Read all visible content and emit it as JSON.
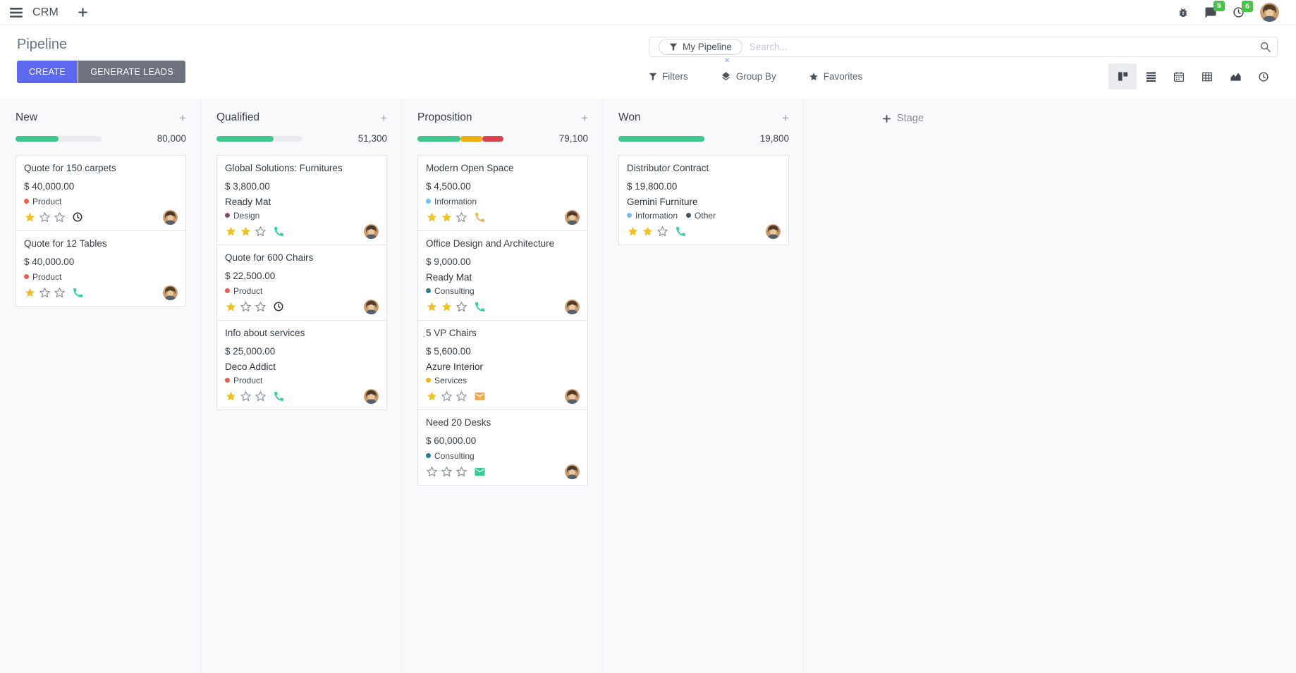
{
  "icons": {
    "plus": "+",
    "facet_remove": "×"
  },
  "navbar": {
    "app_name": "CRM",
    "messages_badge": "5",
    "activities_badge": "6"
  },
  "control_panel": {
    "title": "Pipeline",
    "create_label": "CREATE",
    "generate_leads_label": "GENERATE LEADS",
    "search": {
      "facet_label": "My Pipeline",
      "placeholder": "Search..."
    },
    "filters_label": "Filters",
    "group_by_label": "Group By",
    "favorites_label": "Favorites"
  },
  "board": {
    "add_stage_label": "Stage",
    "star_filled_color": "#f0c220",
    "star_empty_color": "#8b929b",
    "columns": [
      {
        "title": "New",
        "total": "80,000",
        "progress": [
          {
            "color": "#3fc78e",
            "pct": 50
          }
        ],
        "cards": [
          {
            "title": "Quote for 150 carpets",
            "amount": "$ 40,000.00",
            "partner": null,
            "tags": [
              {
                "label": "Product",
                "color": "#e8604e"
              }
            ],
            "stars": 1,
            "activity": {
              "icon": "clock",
              "color": "#2f353b"
            }
          },
          {
            "title": "Quote for 12 Tables",
            "amount": "$ 40,000.00",
            "partner": null,
            "tags": [
              {
                "label": "Product",
                "color": "#e8604e"
              }
            ],
            "stars": 1,
            "activity": {
              "icon": "phone",
              "color": "#2fd0a1"
            }
          }
        ]
      },
      {
        "title": "Qualified",
        "total": "51,300",
        "progress": [
          {
            "color": "#3fc78e",
            "pct": 66
          }
        ],
        "cards": [
          {
            "title": "Global Solutions: Furnitures",
            "amount": "$ 3,800.00",
            "partner": "Ready Mat",
            "tags": [
              {
                "label": "Design",
                "color": "#874a63"
              }
            ],
            "stars": 2,
            "activity": {
              "icon": "phone",
              "color": "#2fd0a1"
            }
          },
          {
            "title": "Quote for 600 Chairs",
            "amount": "$ 22,500.00",
            "partner": null,
            "tags": [
              {
                "label": "Product",
                "color": "#e8604e"
              }
            ],
            "stars": 1,
            "activity": {
              "icon": "clock",
              "color": "#2f353b"
            }
          },
          {
            "title": "Info about services",
            "amount": "$ 25,000.00",
            "partner": "Deco Addict",
            "tags": [
              {
                "label": "Product",
                "color": "#e8604e"
              }
            ],
            "stars": 1,
            "activity": {
              "icon": "phone",
              "color": "#2fd0a1"
            }
          }
        ]
      },
      {
        "title": "Proposition",
        "total": "79,100",
        "progress": [
          {
            "color": "#3fc78e",
            "pct": 50
          },
          {
            "color": "#f0ad0e",
            "pct": 25
          },
          {
            "color": "#d9434f",
            "pct": 25
          }
        ],
        "cards": [
          {
            "title": "Modern Open Space",
            "amount": "$ 4,500.00",
            "partner": null,
            "tags": [
              {
                "label": "Information",
                "color": "#6cc1ed"
              }
            ],
            "stars": 2,
            "activity": {
              "icon": "phone",
              "color": "#eeb057"
            }
          },
          {
            "title": "Office Design and Architecture",
            "amount": "$ 9,000.00",
            "partner": "Ready Mat",
            "tags": [
              {
                "label": "Consulting",
                "color": "#267f8f"
              }
            ],
            "stars": 2,
            "activity": {
              "icon": "phone",
              "color": "#2fd0a1"
            }
          },
          {
            "title": "5 VP Chairs",
            "amount": "$ 5,600.00",
            "partner": "Azure Interior",
            "tags": [
              {
                "label": "Services",
                "color": "#ecb71f"
              }
            ],
            "stars": 1,
            "activity": {
              "icon": "envelope",
              "color": "#f0ad4e"
            }
          },
          {
            "title": "Need 20 Desks",
            "amount": "$ 60,000.00",
            "partner": null,
            "tags": [
              {
                "label": "Consulting",
                "color": "#267f8f"
              }
            ],
            "stars": 0,
            "activity": {
              "icon": "envelope",
              "color": "#35cf96"
            }
          }
        ]
      },
      {
        "title": "Won",
        "total": "19,800",
        "progress": [
          {
            "color": "#3fc78e",
            "pct": 100
          }
        ],
        "cards": [
          {
            "title": "Distributor Contract",
            "amount": "$ 19,800.00",
            "partner": "Gemini Furniture",
            "tags": [
              {
                "label": "Information",
                "color": "#6cc1ed"
              },
              {
                "label": "Other",
                "color": "#44505e"
              }
            ],
            "stars": 2,
            "activity": {
              "icon": "phone",
              "color": "#2fd0a1"
            }
          }
        ]
      }
    ]
  }
}
